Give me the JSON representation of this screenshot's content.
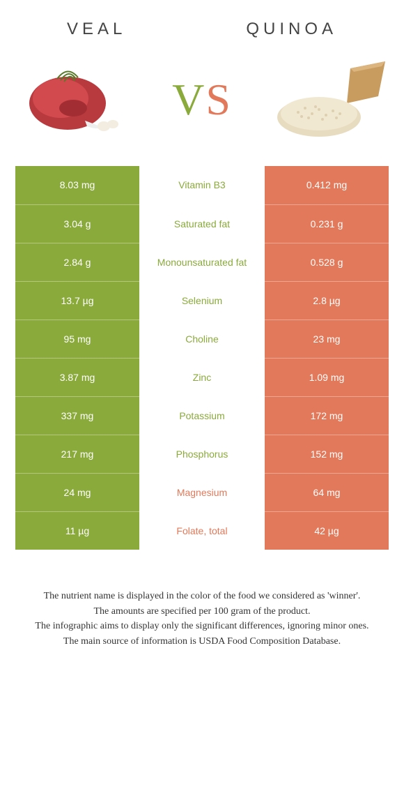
{
  "colors": {
    "left": "#8aaa3b",
    "right": "#e2795a",
    "left_text_winner": "#8aaa3b",
    "right_text_winner": "#e2795a",
    "cell_text": "#ffffff",
    "background": "#ffffff"
  },
  "header": {
    "left_title": "Veal",
    "right_title": "Quinoa",
    "vs_v": "V",
    "vs_s": "S"
  },
  "rows": [
    {
      "left": "8.03 mg",
      "label": "Vitamin B3",
      "right": "0.412 mg",
      "winner": "left"
    },
    {
      "left": "3.04 g",
      "label": "Saturated fat",
      "right": "0.231 g",
      "winner": "left"
    },
    {
      "left": "2.84 g",
      "label": "Monounsaturated fat",
      "right": "0.528 g",
      "winner": "left"
    },
    {
      "left": "13.7 µg",
      "label": "Selenium",
      "right": "2.8 µg",
      "winner": "left"
    },
    {
      "left": "95 mg",
      "label": "Choline",
      "right": "23 mg",
      "winner": "left"
    },
    {
      "left": "3.87 mg",
      "label": "Zinc",
      "right": "1.09 mg",
      "winner": "left"
    },
    {
      "left": "337 mg",
      "label": "Potassium",
      "right": "172 mg",
      "winner": "left"
    },
    {
      "left": "217 mg",
      "label": "Phosphorus",
      "right": "152 mg",
      "winner": "left"
    },
    {
      "left": "24 mg",
      "label": "Magnesium",
      "right": "64 mg",
      "winner": "right"
    },
    {
      "left": "11 µg",
      "label": "Folate, total",
      "right": "42 µg",
      "winner": "right"
    }
  ],
  "footer": {
    "l1": "The nutrient name is displayed in the color of the food we considered as 'winner'.",
    "l2": "The amounts are specified per 100 gram of the product.",
    "l3": "The infographic aims to display only the significant differences, ignoring minor ones.",
    "l4": "The main source of information is USDA Food Composition Database."
  }
}
